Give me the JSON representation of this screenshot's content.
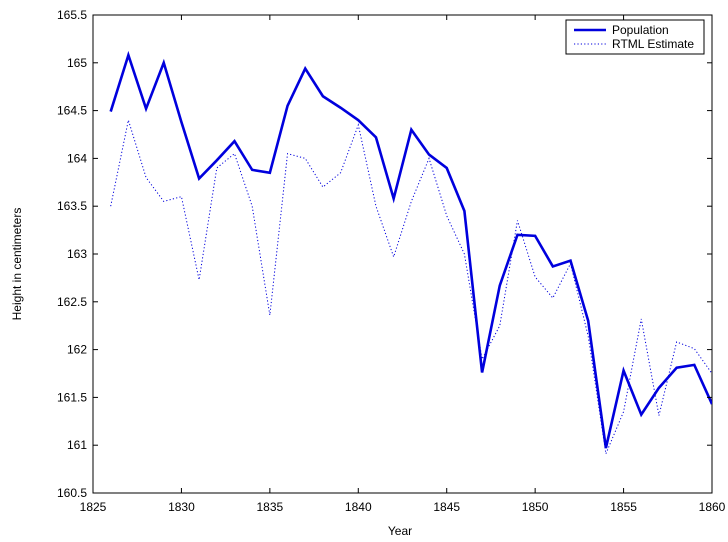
{
  "chart_data": {
    "type": "line",
    "xlabel": "Year",
    "ylabel": "Height in centimeters",
    "xlim": [
      1825,
      1860
    ],
    "ylim": [
      160.5,
      165.5
    ],
    "xticks": [
      1825,
      1830,
      1835,
      1840,
      1845,
      1850,
      1855,
      1860
    ],
    "yticks": [
      160.5,
      161,
      161.5,
      162,
      162.5,
      163,
      163.5,
      164,
      164.5,
      165,
      165.5
    ],
    "xtick_labels": [
      "1825",
      "1830",
      "1835",
      "1840",
      "1845",
      "1850",
      "1855",
      "1860"
    ],
    "ytick_labels": [
      "160.5",
      "161",
      "161.5",
      "162",
      "162.5",
      "163",
      "163.5",
      "164",
      "164.5",
      "165",
      "165.5"
    ],
    "grid": false,
    "legend_position": "top-right",
    "x": [
      1826,
      1827,
      1828,
      1829,
      1830,
      1831,
      1832,
      1833,
      1834,
      1835,
      1836,
      1837,
      1838,
      1839,
      1840,
      1841,
      1842,
      1843,
      1844,
      1845,
      1846,
      1847,
      1848,
      1849,
      1850,
      1851,
      1852,
      1853,
      1854,
      1855,
      1856,
      1857,
      1858,
      1859,
      1860
    ],
    "series": [
      {
        "name": "Population",
        "style": "solid",
        "color": "#0000dd",
        "values": [
          164.49,
          165.08,
          164.52,
          165.0,
          164.38,
          163.79,
          163.98,
          164.18,
          163.88,
          163.85,
          164.55,
          164.94,
          164.65,
          164.53,
          164.4,
          164.22,
          163.58,
          164.3,
          164.04,
          163.9,
          163.45,
          161.76,
          162.67,
          163.2,
          163.19,
          162.87,
          162.93,
          162.3,
          160.97,
          161.78,
          161.32,
          161.6,
          161.81,
          161.84,
          161.43
        ]
      },
      {
        "name": "RTML Estimate",
        "style": "dotted",
        "color": "#0000dd",
        "values": [
          163.5,
          164.4,
          163.8,
          163.55,
          163.6,
          162.73,
          163.9,
          164.05,
          163.5,
          162.36,
          164.05,
          164.0,
          163.7,
          163.85,
          164.35,
          163.5,
          162.97,
          163.55,
          164.0,
          163.4,
          163.0,
          161.9,
          162.25,
          163.35,
          162.76,
          162.54,
          162.9,
          162.14,
          160.91,
          161.35,
          162.32,
          161.31,
          162.08,
          162.01,
          161.75
        ]
      }
    ]
  }
}
